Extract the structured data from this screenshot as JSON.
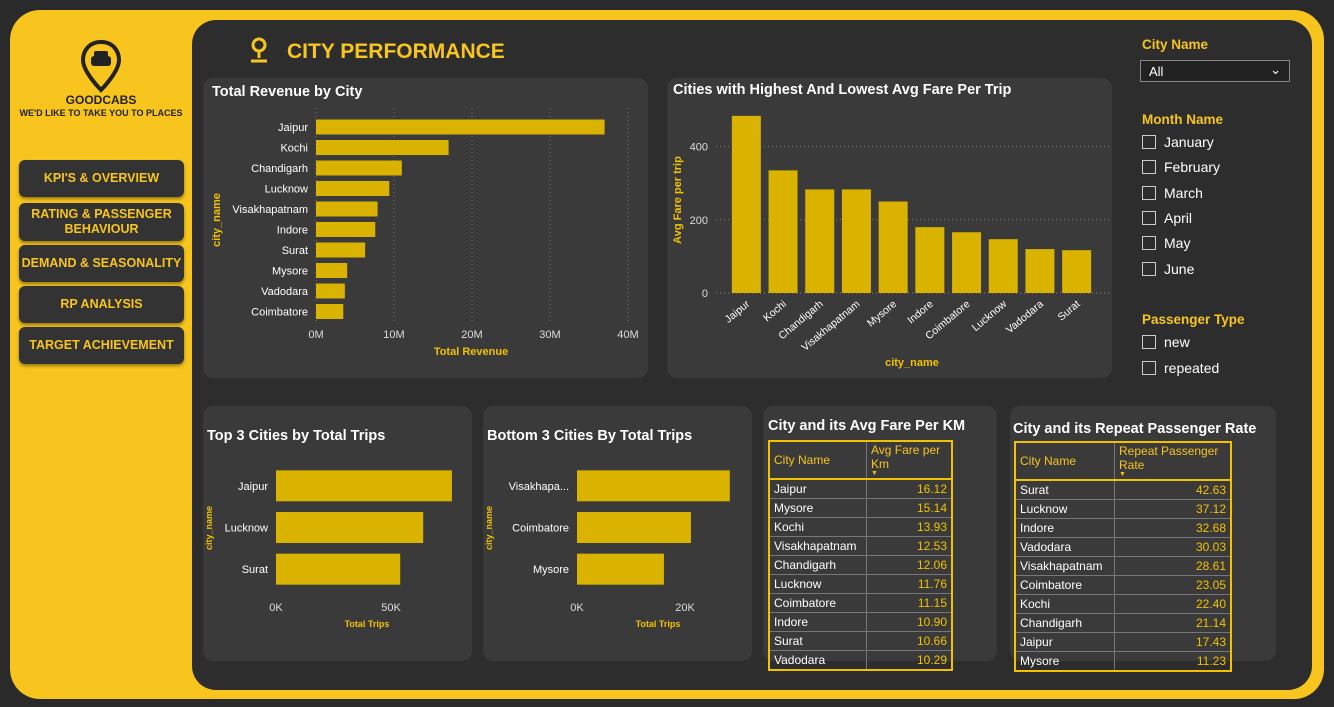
{
  "sidebar": {
    "brand": "GOODCABS",
    "tagline": "WE'D LIKE TO TAKE YOU TO PLACES",
    "nav": [
      "KPI'S & OVERVIEW",
      "RATING & PASSENGER BEHAVIOUR",
      "DEMAND & SEASONALITY",
      "RP ANALYSIS",
      "TARGET ACHIEVEMENT"
    ]
  },
  "header": {
    "title": "CITY PERFORMANCE"
  },
  "chart_data": [
    {
      "type": "hbar",
      "title": "Total Revenue by City",
      "x_label": "Total Revenue",
      "y_label": "city_name",
      "color": "#d9b300",
      "grid": true,
      "categories": [
        "Jaipur",
        "Kochi",
        "Chandigarh",
        "Lucknow",
        "Visakhapatnam",
        "Indore",
        "Surat",
        "Mysore",
        "Vadodara",
        "Coimbatore"
      ],
      "values": [
        37000000,
        17000000,
        11000000,
        9400000,
        7900000,
        7600000,
        6300000,
        4000000,
        3700000,
        3500000
      ],
      "xlim": [
        0,
        40000000
      ],
      "xticks": [
        {
          "value": 0,
          "label": "0M"
        },
        {
          "value": 10000000,
          "label": "10M"
        },
        {
          "value": 20000000,
          "label": "20M"
        },
        {
          "value": 30000000,
          "label": "30M"
        },
        {
          "value": 40000000,
          "label": "40M"
        }
      ]
    },
    {
      "type": "vbar",
      "title": "Cities with Highest And Lowest Avg Fare Per Trip",
      "x_label": "city_name",
      "y_label": "Avg Fare per trip",
      "color": "#d9b300",
      "grid": true,
      "categories": [
        "Jaipur",
        "Kochi",
        "Chandigarh",
        "Visakhapatnam",
        "Mysore",
        "Indore",
        "Coimbatore",
        "Lucknow",
        "Vadodara",
        "Surat"
      ],
      "values": [
        484,
        335,
        283,
        283,
        250,
        180,
        166,
        147,
        120,
        117
      ],
      "ylim": [
        0,
        500
      ],
      "yticks": [
        0,
        200,
        400
      ]
    },
    {
      "type": "hbar",
      "title": "Top 3 Cities by Total Trips",
      "x_label": "Total Trips",
      "y_label": "city_name",
      "color": "#d9b300",
      "grid": false,
      "categories": [
        "Jaipur",
        "Lucknow",
        "Surat"
      ],
      "values": [
        76500,
        64000,
        54000
      ],
      "xlim": [
        0,
        80000
      ],
      "xticks": [
        {
          "value": 0,
          "label": "0K"
        },
        {
          "value": 50000,
          "label": "50K"
        }
      ]
    },
    {
      "type": "hbar",
      "title": "Bottom 3 Cities By Total Trips",
      "x_label": "Total Trips",
      "y_label": "city_name",
      "color": "#d9b300",
      "grid": false,
      "categories": [
        "Visakhapa...",
        "Coimbatore",
        "Mysore"
      ],
      "values": [
        28300,
        21100,
        16100
      ],
      "xlim": [
        0,
        30000
      ],
      "xticks": [
        {
          "value": 0,
          "label": "0K"
        },
        {
          "value": 20000,
          "label": "20K"
        }
      ]
    }
  ],
  "tables": [
    {
      "title": "City and its Avg Fare Per KM",
      "columns": [
        "City Name",
        "Avg Fare per Km"
      ],
      "rows": [
        [
          "Jaipur",
          "16.12"
        ],
        [
          "Mysore",
          "15.14"
        ],
        [
          "Kochi",
          "13.93"
        ],
        [
          "Visakhapatnam",
          "12.53"
        ],
        [
          "Chandigarh",
          "12.06"
        ],
        [
          "Lucknow",
          "11.76"
        ],
        [
          "Coimbatore",
          "11.15"
        ],
        [
          "Indore",
          "10.90"
        ],
        [
          "Surat",
          "10.66"
        ],
        [
          "Vadodara",
          "10.29"
        ]
      ]
    },
    {
      "title": "City and its Repeat Passenger Rate",
      "columns": [
        "City Name",
        "Repeat Passenger Rate"
      ],
      "rows": [
        [
          "Surat",
          "42.63"
        ],
        [
          "Lucknow",
          "37.12"
        ],
        [
          "Indore",
          "32.68"
        ],
        [
          "Vadodara",
          "30.03"
        ],
        [
          "Visakhapatnam",
          "28.61"
        ],
        [
          "Coimbatore",
          "23.05"
        ],
        [
          "Kochi",
          "22.40"
        ],
        [
          "Chandigarh",
          "21.14"
        ],
        [
          "Jaipur",
          "17.43"
        ],
        [
          "Mysore",
          "11.23"
        ]
      ]
    }
  ],
  "filters": {
    "city": {
      "label": "City Name",
      "selected": "All"
    },
    "month": {
      "label": "Month Name",
      "options": [
        "January",
        "February",
        "March",
        "April",
        "May",
        "June"
      ]
    },
    "passenger": {
      "label": "Passenger Type",
      "options": [
        "new",
        "repeated"
      ]
    }
  }
}
